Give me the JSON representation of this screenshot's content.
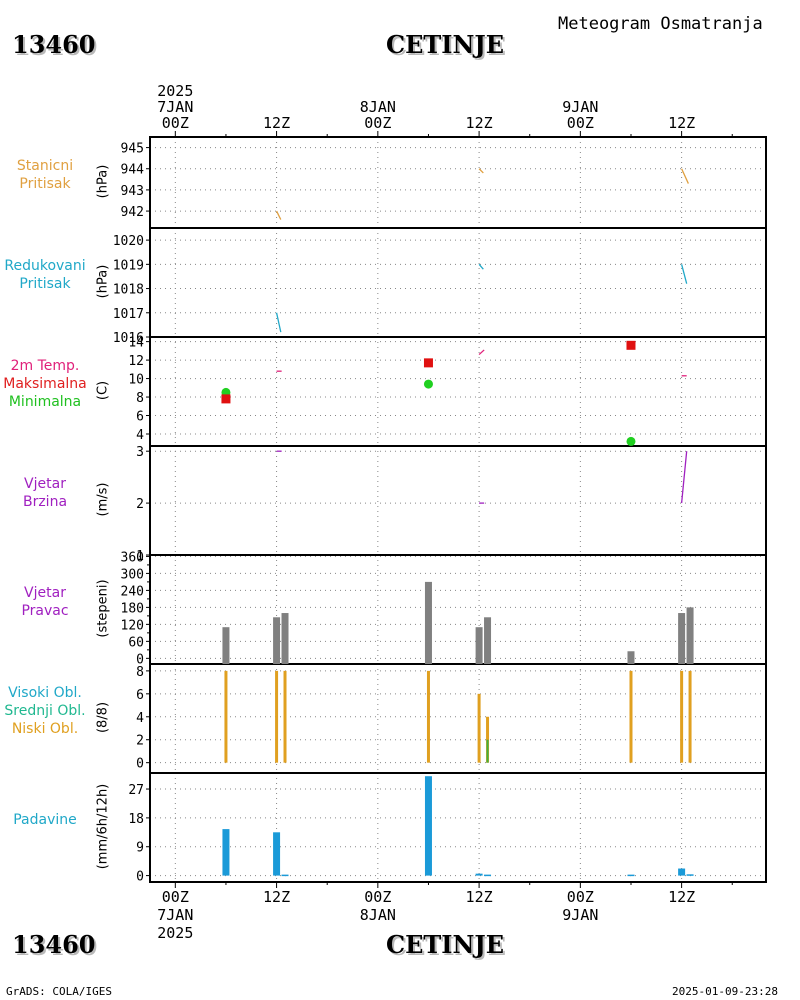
{
  "station": {
    "id": "13460",
    "name": "CETINJE"
  },
  "meta": {
    "title": "Meteogram Osmatranja",
    "credit": "GrADS: COLA/IGES",
    "timestamp": "2025-01-09-23:28"
  },
  "time_axis_top": [
    {
      "hours": 0,
      "lines": [
        "2025",
        "7JAN",
        "00Z"
      ]
    },
    {
      "hours": 12,
      "lines": [
        "12Z"
      ]
    },
    {
      "hours": 24,
      "lines": [
        "8JAN",
        "00Z"
      ]
    },
    {
      "hours": 36,
      "lines": [
        "12Z"
      ]
    },
    {
      "hours": 48,
      "lines": [
        "9JAN",
        "00Z"
      ]
    },
    {
      "hours": 60,
      "lines": [
        "12Z"
      ]
    }
  ],
  "time_axis_bottom": [
    {
      "hours": 0,
      "lines": [
        "00Z",
        "7JAN",
        "2025"
      ]
    },
    {
      "hours": 12,
      "lines": [
        "12Z"
      ]
    },
    {
      "hours": 24,
      "lines": [
        "00Z",
        "8JAN"
      ]
    },
    {
      "hours": 36,
      "lines": [
        "12Z"
      ]
    },
    {
      "hours": 48,
      "lines": [
        "00Z",
        "9JAN"
      ]
    },
    {
      "hours": 60,
      "lines": [
        "12Z"
      ]
    }
  ],
  "panels": [
    {
      "key": "p1",
      "labels": [
        {
          "text": "Stanicni",
          "color": "#e0a040"
        },
        {
          "text": "Pritisak",
          "color": "#e0a040"
        }
      ],
      "unit": "(hPa)",
      "ylim": [
        941.2,
        945.5
      ],
      "ticks": [
        942,
        943,
        944,
        945
      ]
    },
    {
      "key": "p2",
      "labels": [
        {
          "text": "Redukovani",
          "color": "#20a8c8"
        },
        {
          "text": "Pritisak",
          "color": "#20a8c8"
        }
      ],
      "unit": "(hPa)",
      "ylim": [
        1016.0,
        1020.5
      ],
      "ticks": [
        1016,
        1017,
        1018,
        1019,
        1020
      ]
    },
    {
      "key": "p3",
      "labels": [
        {
          "text": "2m Temp.",
          "color": "#e0207a"
        },
        {
          "text": "Maksimalna",
          "color": "#e02020"
        },
        {
          "text": "Minimalna",
          "color": "#20c020"
        }
      ],
      "unit": "(C)",
      "ylim": [
        2.7,
        14.5
      ],
      "ticks": [
        4,
        6,
        8,
        10,
        12,
        14
      ]
    },
    {
      "key": "p4",
      "labels": [
        {
          "text": "Vjetar",
          "color": "#a020c0"
        },
        {
          "text": "Brzina",
          "color": "#a020c0"
        }
      ],
      "unit": "(m/s)",
      "ylim": [
        1.0,
        3.1
      ],
      "ticks": [
        1,
        2,
        3
      ]
    },
    {
      "key": "p5",
      "labels": [
        {
          "text": "Vjetar",
          "color": "#a020c0"
        },
        {
          "text": "Pravac",
          "color": "#a020c0"
        }
      ],
      "unit": "(stepeni)",
      "ylim": [
        -20,
        365
      ],
      "ticks": [
        0,
        60,
        120,
        180,
        240,
        300,
        360
      ],
      "extra_ticks": [
        30,
        90,
        150,
        210,
        270,
        330
      ]
    },
    {
      "key": "p6",
      "labels": [
        {
          "text": "Visoki Obl.",
          "color": "#20a8c8"
        },
        {
          "text": "Srednji Obl.",
          "color": "#20b890"
        },
        {
          "text": "Niski Obl.",
          "color": "#e0a020"
        }
      ],
      "unit": "(8/8)",
      "ylim": [
        -0.9,
        8.6
      ],
      "ticks": [
        0,
        2,
        4,
        6,
        8
      ]
    },
    {
      "key": "p7",
      "labels": [
        {
          "text": "Padavine",
          "color": "#20a8c8"
        }
      ],
      "unit": "(mm/6h/12h)",
      "ylim": [
        -2,
        32
      ],
      "ticks": [
        0,
        9,
        18,
        27
      ]
    }
  ],
  "chart_data": {
    "type": "meteogram",
    "x_unit": "hours since 2025-01-07 00Z",
    "xlim": [
      -3,
      70
    ],
    "station_pressure": {
      "series": [
        {
          "x": [
            12,
            12.5
          ],
          "y": [
            942.0,
            941.6
          ]
        },
        {
          "x": [
            36,
            36.5
          ],
          "y": [
            944.0,
            943.8
          ]
        },
        {
          "x": [
            60,
            60.8
          ],
          "y": [
            944.0,
            943.3
          ]
        }
      ],
      "color": "#e0a040"
    },
    "reduced_pressure": {
      "series": [
        {
          "x": [
            12,
            12.5
          ],
          "y": [
            1017.0,
            1016.2
          ]
        },
        {
          "x": [
            36,
            36.5
          ],
          "y": [
            1019.0,
            1018.8
          ]
        },
        {
          "x": [
            60,
            60.6
          ],
          "y": [
            1019.0,
            1018.2
          ]
        }
      ],
      "color": "#20a8c8"
    },
    "temperature": {
      "series": [
        {
          "x": [
            12,
            12.6
          ],
          "y": [
            10.8,
            10.8
          ]
        },
        {
          "x": [
            36,
            36.6
          ],
          "y": [
            12.6,
            13.1
          ]
        },
        {
          "x": [
            60,
            60.6
          ],
          "y": [
            10.3,
            10.3
          ]
        }
      ],
      "color": "#e0207a",
      "max": {
        "x": [
          6,
          30,
          54
        ],
        "y": [
          7.8,
          11.7,
          13.6
        ],
        "color": "#e01010"
      },
      "min": {
        "x": [
          6,
          30,
          54
        ],
        "y": [
          8.5,
          9.4,
          3.2
        ],
        "color": "#20d020"
      }
    },
    "wind_speed": {
      "series": [
        {
          "x": [
            12,
            12.6
          ],
          "y": [
            3.0,
            3.0
          ]
        },
        {
          "x": [
            36,
            36.6
          ],
          "y": [
            2.0,
            2.0
          ]
        },
        {
          "x": [
            60,
            60.6
          ],
          "y": [
            2.0,
            3.0
          ]
        }
      ],
      "color": "#a020c0"
    },
    "wind_direction": {
      "bars": [
        {
          "x": 6,
          "value": 110
        },
        {
          "x": 12,
          "value": 145
        },
        {
          "x": 13,
          "value": 160
        },
        {
          "x": 30,
          "value": 270
        },
        {
          "x": 36,
          "value": 110
        },
        {
          "x": 37,
          "value": 145
        },
        {
          "x": 54,
          "value": 25
        },
        {
          "x": 60,
          "value": 160
        },
        {
          "x": 61,
          "value": 180
        }
      ],
      "color": "#808080"
    },
    "clouds": {
      "low": [
        {
          "x": 6,
          "value": 8
        },
        {
          "x": 12,
          "value": 8
        },
        {
          "x": 13,
          "value": 8
        },
        {
          "x": 30,
          "value": 8
        },
        {
          "x": 36,
          "value": 6
        },
        {
          "x": 37,
          "value": 4
        },
        {
          "x": 54,
          "value": 8
        },
        {
          "x": 60,
          "value": 8
        },
        {
          "x": 61,
          "value": 8
        }
      ],
      "middle": [
        {
          "x": 37,
          "value": 2
        }
      ],
      "low_color": "#e0a020",
      "middle_color": "#40b040"
    },
    "precipitation": {
      "bars": [
        {
          "x": 6,
          "value": 14.5
        },
        {
          "x": 12,
          "value": 13.5
        },
        {
          "x": 13,
          "value": 0.3
        },
        {
          "x": 30,
          "value": 31
        },
        {
          "x": 36,
          "value": 0.6
        },
        {
          "x": 37,
          "value": 0.3
        },
        {
          "x": 54,
          "value": 0.3
        },
        {
          "x": 60,
          "value": 2.2
        },
        {
          "x": 61,
          "value": 0.4
        }
      ],
      "color": "#1a9ad8"
    }
  }
}
